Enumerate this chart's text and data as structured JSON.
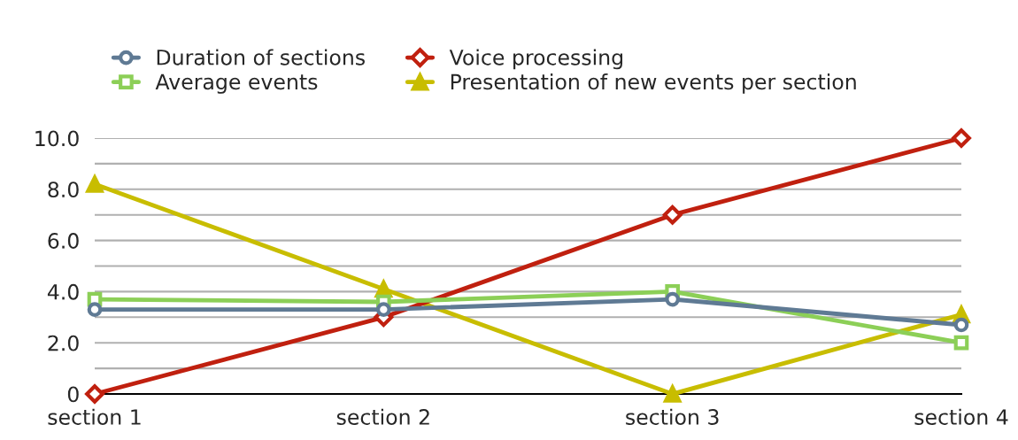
{
  "chart_data": {
    "type": "line",
    "categories": [
      "section 1",
      "section 2",
      "section 3",
      "section 4"
    ],
    "series": [
      {
        "name": "Duration of sections",
        "color": "#5f7a94",
        "marker": "circle",
        "values": [
          3.3,
          3.3,
          3.7,
          2.7
        ]
      },
      {
        "name": "Average events",
        "color": "#8ccf57",
        "marker": "square",
        "values": [
          3.7,
          3.6,
          4.0,
          2.0
        ]
      },
      {
        "name": "Voice processing",
        "color": "#c0200f",
        "marker": "diamond",
        "values": [
          0,
          3,
          7,
          10
        ]
      },
      {
        "name": "Presentation of new events per section",
        "color": "#c8bd00",
        "marker": "triangle",
        "values": [
          8.2,
          4.1,
          0,
          3.1
        ]
      }
    ],
    "ylim": [
      0,
      10
    ],
    "yticks": [
      0,
      {
        "value": 1,
        "label": null
      },
      {
        "value": 2,
        "label": "2.0"
      },
      {
        "value": 3,
        "label": null
      },
      {
        "value": 4,
        "label": "4.0"
      },
      {
        "value": 5,
        "label": null
      },
      {
        "value": 6,
        "label": "6.0"
      },
      {
        "value": 7,
        "label": null
      },
      {
        "value": 8,
        "label": "8.0"
      },
      {
        "value": 9,
        "label": null
      },
      {
        "value": 10,
        "label": "10.0"
      }
    ],
    "grid": "y",
    "legend": "top"
  }
}
